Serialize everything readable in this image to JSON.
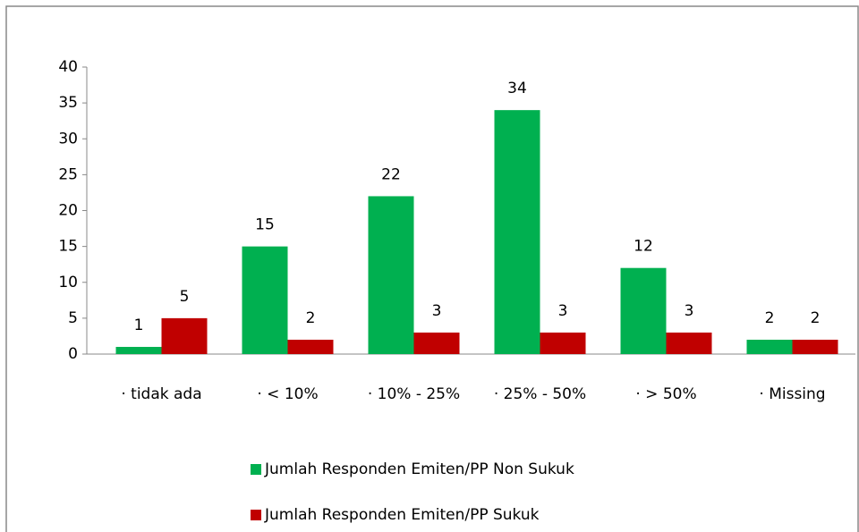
{
  "chart_data": {
    "type": "bar",
    "categories": [
      "· tidak ada",
      "· < 10%",
      "· 10% - 25%",
      "· 25% - 50%",
      "· > 50%",
      "· Missing"
    ],
    "series": [
      {
        "name": "Jumlah Responden Emiten/PP Non Sukuk",
        "color": "#00b050",
        "values": [
          1,
          15,
          22,
          34,
          12,
          2
        ]
      },
      {
        "name": "Jumlah Responden Emiten/PP Sukuk",
        "color": "#c00000",
        "values": [
          5,
          2,
          3,
          3,
          3,
          2
        ]
      }
    ],
    "ylim": [
      0,
      40
    ],
    "yticks": [
      0,
      5,
      10,
      15,
      20,
      25,
      30,
      35,
      40
    ],
    "grid": false,
    "legend": "bottom"
  }
}
